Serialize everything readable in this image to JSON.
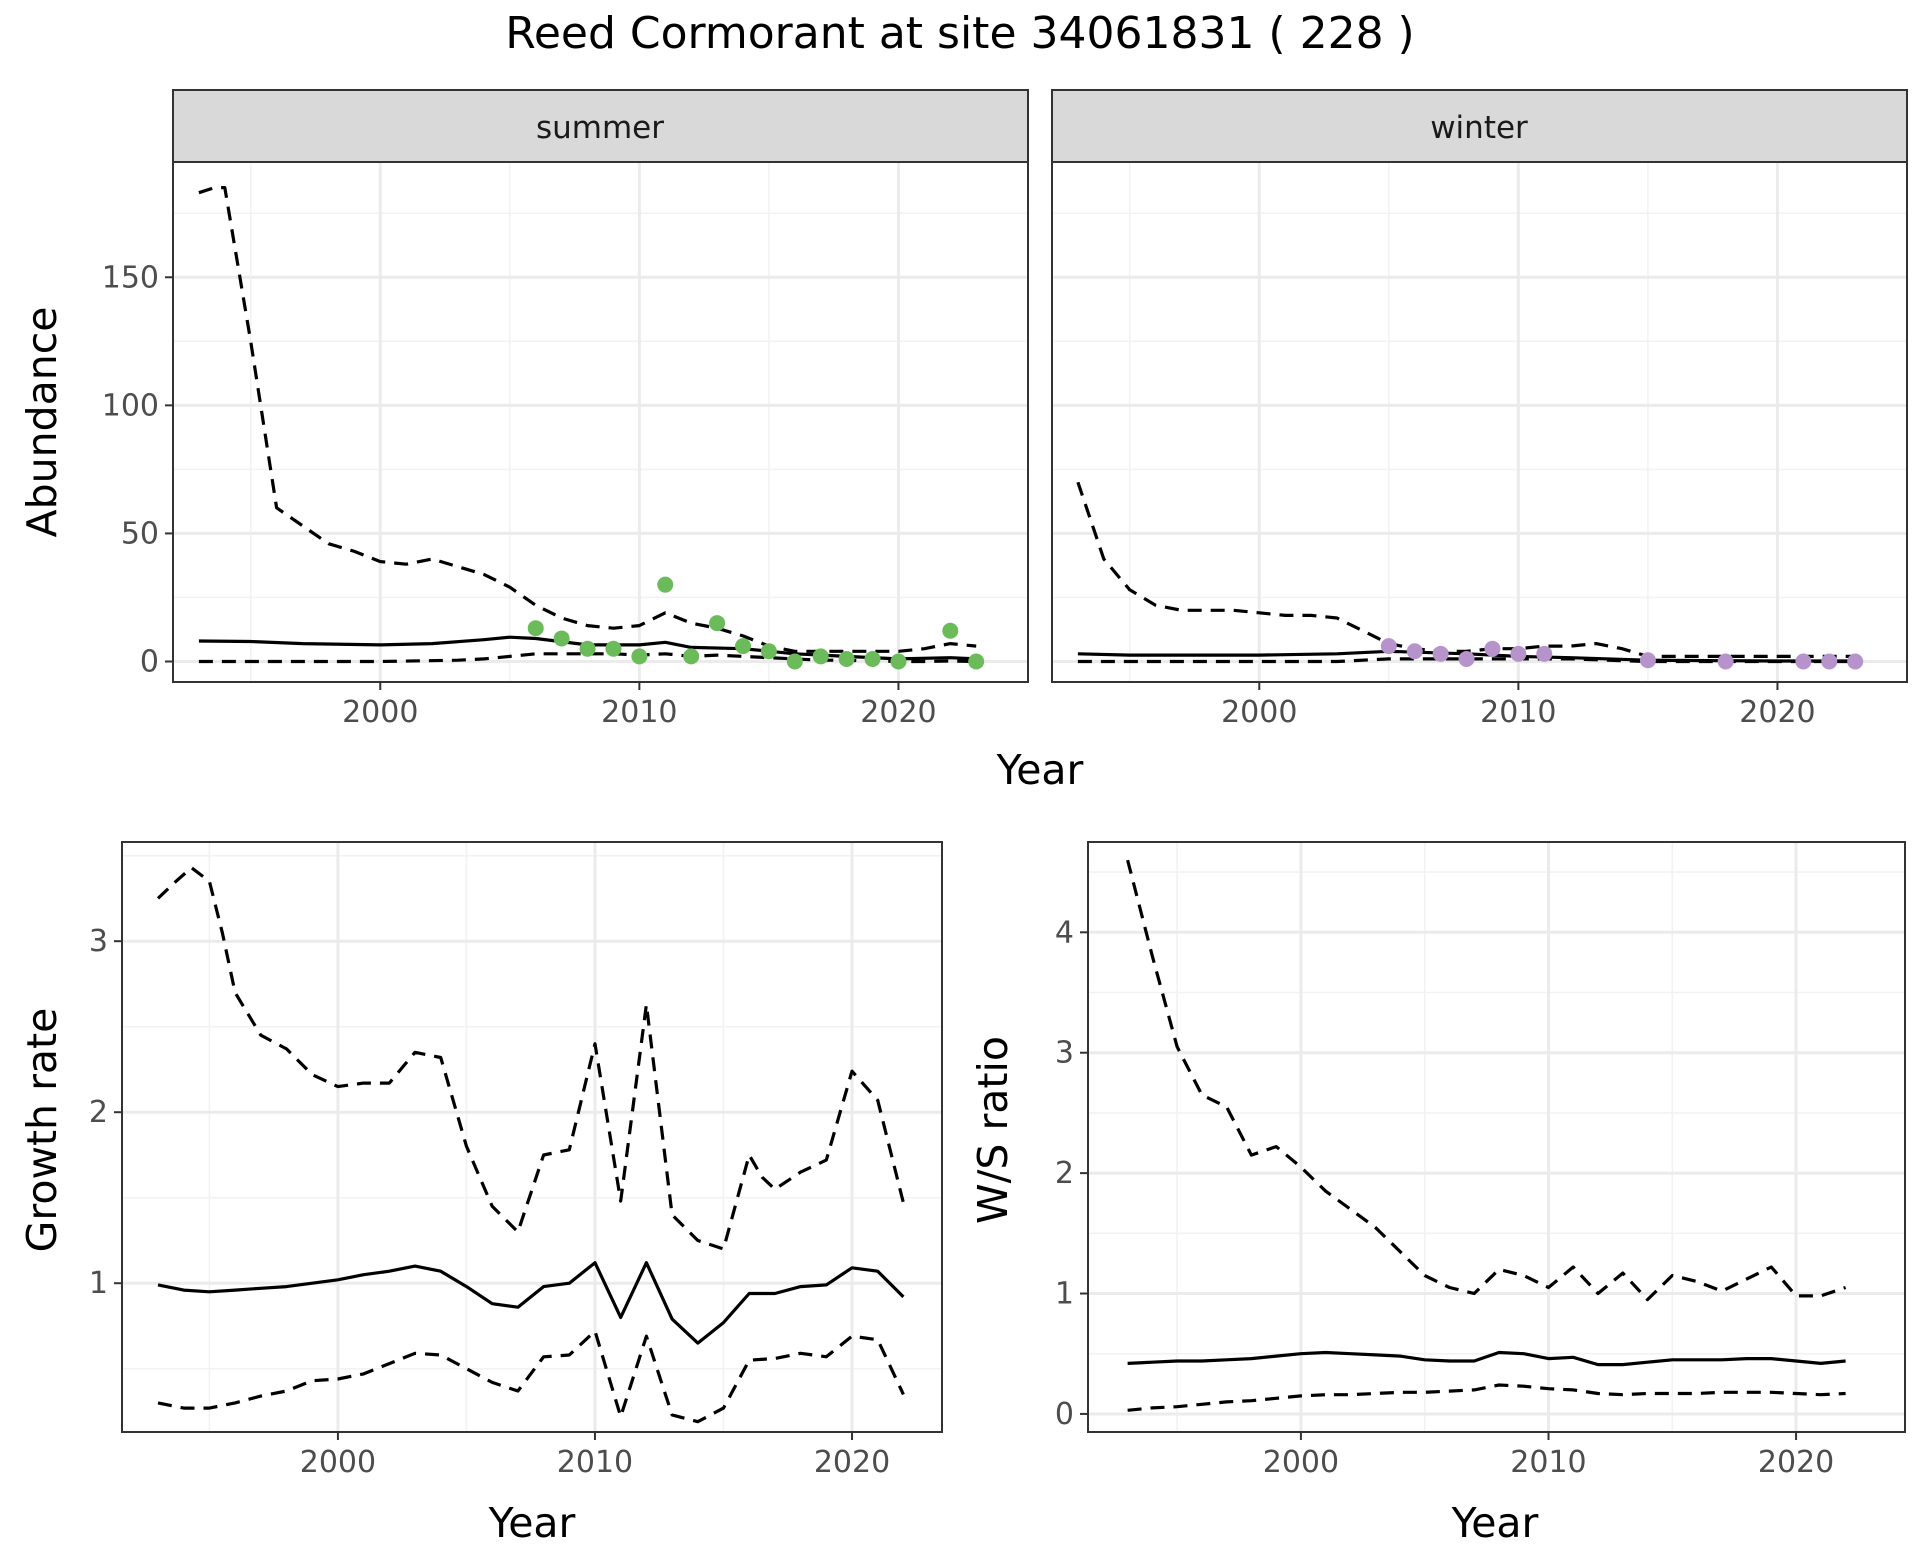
{
  "figure": {
    "title": "Reed Cormorant at site 34061831 ( 228 )"
  },
  "colors": {
    "summer_points": "#6bbb5b",
    "winter_points": "#b793cb",
    "line": "#000000"
  },
  "chart_data": [
    {
      "type": "line",
      "panel": "summer",
      "strip_label": "summer",
      "xlabel": "Year",
      "ylabel": "Abundance",
      "xlim": [
        1992,
        2025
      ],
      "ylim": [
        -8,
        195
      ],
      "x_ticks": [
        2000,
        2010,
        2020
      ],
      "y_ticks": [
        0,
        50,
        100,
        150
      ],
      "grid": true,
      "series": [
        {
          "style": "solid",
          "x": [
            1993,
            1995,
            1997,
            2000,
            2002,
            2004,
            2005,
            2006,
            2008,
            2010,
            2011,
            2012,
            2014,
            2016,
            2018,
            2020,
            2022,
            2023
          ],
          "y": [
            8,
            7.8,
            7,
            6.5,
            7,
            8.5,
            9.5,
            9,
            6.5,
            6.5,
            7.5,
            5.5,
            5,
            3,
            2,
            1,
            1.5,
            1
          ]
        },
        {
          "style": "dashed",
          "x": [
            1993,
            1993.6,
            1994,
            1995,
            1996,
            1997,
            1998,
            1999,
            2000,
            2001,
            2002,
            2003,
            2004,
            2005,
            2006,
            2007,
            2008,
            2009,
            2010,
            2011,
            2012,
            2013,
            2014,
            2015,
            2016,
            2017,
            2018,
            2019,
            2020,
            2021,
            2022,
            2023
          ],
          "y": [
            183,
            185,
            185,
            125,
            60,
            53,
            46,
            43,
            39,
            38,
            40,
            37,
            34,
            29,
            22,
            17,
            14,
            13,
            14,
            19,
            15,
            13,
            10,
            6,
            4,
            4,
            4,
            4,
            4,
            5,
            7,
            6
          ]
        },
        {
          "style": "dashed",
          "x": [
            1993,
            1995,
            2000,
            2003,
            2004,
            2005,
            2006,
            2008,
            2009,
            2010,
            2011,
            2012,
            2013,
            2014,
            2015,
            2016,
            2017,
            2018,
            2019,
            2020,
            2021,
            2022,
            2023
          ],
          "y": [
            0,
            0,
            0,
            0.5,
            1,
            2,
            3,
            3,
            3,
            2.5,
            3,
            2,
            2.5,
            2,
            1.5,
            1,
            0.5,
            0.5,
            0.2,
            0,
            0,
            0.2,
            0
          ]
        }
      ],
      "points": {
        "x": [
          2006,
          2007,
          2008,
          2009,
          2010,
          2011,
          2012,
          2013,
          2014,
          2015,
          2016,
          2017,
          2018,
          2019,
          2020,
          2022,
          2023
        ],
        "y": [
          13,
          9,
          5,
          5,
          2,
          30,
          2,
          15,
          6,
          4,
          0,
          2,
          1,
          1,
          0,
          12,
          0
        ]
      }
    },
    {
      "type": "line",
      "panel": "winter",
      "strip_label": "winter",
      "xlabel": "Year",
      "ylabel": "Abundance",
      "xlim": [
        1992,
        2025
      ],
      "ylim": [
        -8,
        195
      ],
      "x_ticks": [
        2000,
        2010,
        2020
      ],
      "y_ticks": [
        0,
        50,
        100,
        150
      ],
      "grid": true,
      "series": [
        {
          "style": "solid",
          "x": [
            1993,
            1995,
            2000,
            2003,
            2005,
            2008,
            2010,
            2012,
            2015,
            2018,
            2020,
            2023
          ],
          "y": [
            3,
            2.5,
            2.5,
            3,
            4,
            3,
            2,
            1.5,
            0.5,
            0.3,
            0.2,
            0.2
          ]
        },
        {
          "style": "dashed",
          "x": [
            1993,
            1994,
            1995,
            1996,
            1997,
            1998,
            1999,
            2000,
            2001,
            2002,
            2003,
            2004,
            2005,
            2006,
            2007,
            2008,
            2009,
            2010,
            2011,
            2012,
            2013,
            2014,
            2015,
            2016,
            2017,
            2018,
            2019,
            2020,
            2021,
            2022,
            2023
          ],
          "y": [
            70,
            40,
            28,
            22,
            20,
            20,
            20,
            19,
            18,
            18,
            17,
            12,
            7,
            5,
            4,
            4,
            5,
            5,
            6,
            6,
            7,
            5,
            2,
            2,
            2,
            2,
            2,
            2,
            2,
            2,
            2
          ]
        },
        {
          "style": "dashed",
          "x": [
            1993,
            2000,
            2003,
            2005,
            2008,
            2010,
            2012,
            2015,
            2020,
            2023
          ],
          "y": [
            0,
            0,
            0,
            1,
            1,
            1,
            1,
            0,
            0,
            0
          ]
        }
      ],
      "points": {
        "x": [
          2005,
          2006,
          2007,
          2008,
          2009,
          2010,
          2011,
          2015,
          2018,
          2021,
          2022,
          2023
        ],
        "y": [
          6,
          4,
          3,
          1,
          5,
          3,
          3,
          0.5,
          0,
          0,
          0,
          0
        ]
      }
    },
    {
      "type": "line",
      "panel": "growth",
      "xlabel": "Year",
      "ylabel": "Growth rate",
      "xlim": [
        1991.6,
        2023.5
      ],
      "ylim": [
        0.13,
        3.58
      ],
      "x_ticks": [
        2000,
        2010,
        2020
      ],
      "y_ticks": [
        1,
        2,
        3
      ],
      "grid": true,
      "series": [
        {
          "style": "solid",
          "x": [
            1993,
            1994,
            1995,
            1996,
            1997,
            1998,
            1999,
            2000,
            2001,
            2002,
            2003,
            2004,
            2005,
            2006,
            2007,
            2008,
            2009,
            2010,
            2011,
            2012,
            2013,
            2014,
            2015,
            2016,
            2017,
            2018,
            2019,
            2020,
            2021,
            2022
          ],
          "y": [
            0.99,
            0.96,
            0.95,
            0.96,
            0.97,
            0.98,
            1.0,
            1.02,
            1.05,
            1.07,
            1.1,
            1.07,
            0.98,
            0.88,
            0.86,
            0.98,
            1.0,
            1.12,
            0.8,
            1.12,
            0.79,
            0.65,
            0.77,
            0.94,
            0.94,
            0.98,
            0.99,
            1.09,
            1.07,
            0.92
          ]
        },
        {
          "style": "dashed",
          "x": [
            1993,
            1993.7,
            1994.3,
            1995,
            1995.5,
            1996,
            1997,
            1998,
            1999,
            2000,
            2001,
            2002,
            2003,
            2004,
            2005,
            2006,
            2007,
            2008,
            2009,
            2010,
            2011,
            2012,
            2013,
            2014,
            2015,
            2016,
            2016.5,
            2017,
            2018,
            2019,
            2020,
            2021,
            2022
          ],
          "y": [
            3.25,
            3.35,
            3.43,
            3.35,
            3.05,
            2.7,
            2.45,
            2.37,
            2.22,
            2.15,
            2.17,
            2.17,
            2.35,
            2.32,
            1.8,
            1.45,
            1.3,
            1.75,
            1.78,
            2.4,
            1.48,
            2.63,
            1.4,
            1.25,
            1.2,
            1.75,
            1.62,
            1.55,
            1.65,
            1.72,
            2.24,
            2.07,
            1.47
          ]
        },
        {
          "style": "dashed",
          "x": [
            1993,
            1994,
            1995,
            1996,
            1997,
            1998,
            1999,
            2000,
            2001,
            2002,
            2003,
            2004,
            2005,
            2006,
            2007,
            2008,
            2009,
            2010,
            2011,
            2012,
            2013,
            2014,
            2015,
            2016,
            2017,
            2018,
            2019,
            2020,
            2021,
            2022
          ],
          "y": [
            0.3,
            0.27,
            0.27,
            0.3,
            0.34,
            0.37,
            0.43,
            0.44,
            0.47,
            0.53,
            0.59,
            0.58,
            0.5,
            0.42,
            0.37,
            0.57,
            0.58,
            0.72,
            0.22,
            0.69,
            0.23,
            0.19,
            0.27,
            0.55,
            0.56,
            0.59,
            0.57,
            0.69,
            0.67,
            0.35
          ]
        }
      ]
    },
    {
      "type": "line",
      "panel": "ws_ratio",
      "xlabel": "Year",
      "ylabel": "W/S ratio",
      "xlim": [
        1991.4,
        2024.4
      ],
      "ylim": [
        -0.15,
        4.75
      ],
      "x_ticks": [
        2000,
        2010,
        2020
      ],
      "y_ticks": [
        0,
        1,
        2,
        3,
        4
      ],
      "grid": true,
      "series": [
        {
          "style": "solid",
          "x": [
            1993,
            1994,
            1995,
            1996,
            1997,
            1998,
            1999,
            2000,
            2001,
            2002,
            2003,
            2004,
            2005,
            2006,
            2007,
            2008,
            2009,
            2010,
            2011,
            2012,
            2013,
            2014,
            2015,
            2016,
            2017,
            2018,
            2019,
            2020,
            2021,
            2022
          ],
          "y": [
            0.42,
            0.43,
            0.44,
            0.44,
            0.45,
            0.46,
            0.48,
            0.5,
            0.51,
            0.5,
            0.49,
            0.48,
            0.45,
            0.44,
            0.44,
            0.51,
            0.5,
            0.46,
            0.47,
            0.41,
            0.41,
            0.43,
            0.45,
            0.45,
            0.45,
            0.46,
            0.46,
            0.44,
            0.42,
            0.44
          ]
        },
        {
          "style": "dashed",
          "x": [
            1993,
            1994,
            1995,
            1996,
            1997,
            1998,
            1999,
            2000,
            2001,
            2002,
            2003,
            2004,
            2005,
            2006,
            2007,
            2008,
            2009,
            2010,
            2011,
            2012,
            2013,
            2014,
            2015,
            2016,
            2017,
            2018,
            2019,
            2020,
            2021,
            2022
          ],
          "y": [
            4.6,
            3.8,
            3.05,
            2.65,
            2.55,
            2.15,
            2.22,
            2.05,
            1.85,
            1.7,
            1.55,
            1.35,
            1.15,
            1.05,
            1.0,
            1.2,
            1.15,
            1.05,
            1.22,
            1.0,
            1.17,
            0.95,
            1.15,
            1.1,
            1.02,
            1.12,
            1.22,
            0.98,
            0.98,
            1.05
          ]
        },
        {
          "style": "dashed",
          "x": [
            1993,
            1994,
            1995,
            1996,
            1997,
            1998,
            1999,
            2000,
            2001,
            2002,
            2003,
            2004,
            2005,
            2006,
            2007,
            2008,
            2009,
            2010,
            2011,
            2012,
            2013,
            2014,
            2015,
            2016,
            2017,
            2018,
            2019,
            2020,
            2021,
            2022
          ],
          "y": [
            0.03,
            0.05,
            0.06,
            0.08,
            0.1,
            0.11,
            0.13,
            0.15,
            0.16,
            0.16,
            0.17,
            0.18,
            0.18,
            0.19,
            0.2,
            0.24,
            0.23,
            0.21,
            0.2,
            0.17,
            0.16,
            0.17,
            0.17,
            0.17,
            0.18,
            0.18,
            0.18,
            0.17,
            0.16,
            0.17
          ]
        }
      ]
    }
  ]
}
